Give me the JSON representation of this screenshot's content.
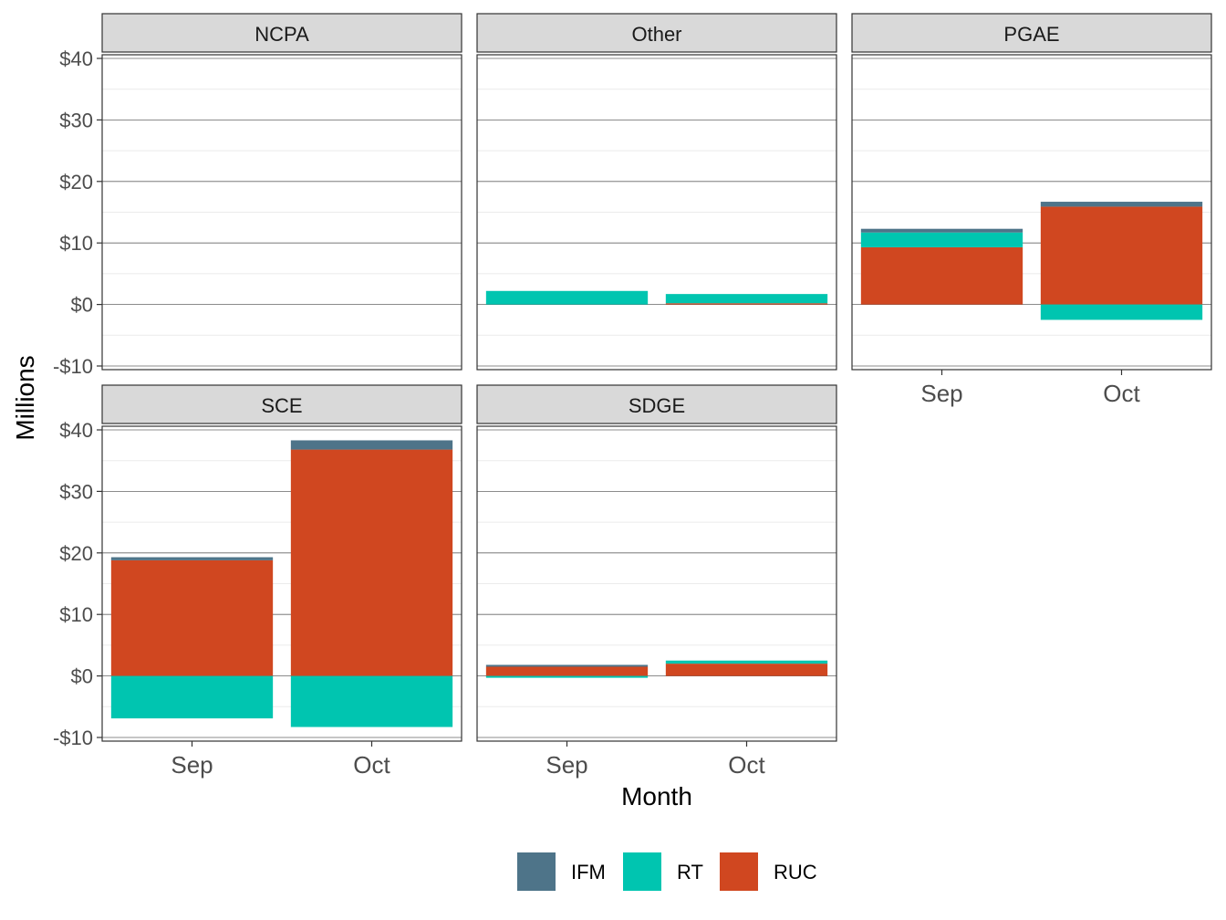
{
  "chart_data": {
    "type": "bar",
    "stacked": true,
    "title": "",
    "xlabel": "Month",
    "ylabel": "Millions",
    "categories": [
      "Sep",
      "Oct"
    ],
    "ylim": [
      -10,
      40
    ],
    "yticks": [
      -10,
      0,
      10,
      20,
      30,
      40
    ],
    "ytick_labels": [
      "-$10",
      "$0",
      "$10",
      "$20",
      "$30",
      "$40"
    ],
    "legend": {
      "position": "bottom",
      "entries": [
        {
          "name": "IFM",
          "color": "#4e7489"
        },
        {
          "name": "RT",
          "color": "#00c5b0"
        },
        {
          "name": "RUC",
          "color": "#d04720"
        }
      ]
    },
    "panels": [
      {
        "name": "NCPA",
        "series": [
          {
            "name": "IFM",
            "values": [
              0,
              0
            ]
          },
          {
            "name": "RT",
            "values": [
              0,
              0
            ]
          },
          {
            "name": "RUC",
            "values": [
              0,
              0
            ]
          }
        ]
      },
      {
        "name": "Other",
        "series": [
          {
            "name": "IFM",
            "values": [
              0,
              0
            ]
          },
          {
            "name": "RT",
            "values": [
              2.2,
              1.5
            ]
          },
          {
            "name": "RUC",
            "values": [
              0,
              0.2
            ]
          }
        ]
      },
      {
        "name": "PGAE",
        "series": [
          {
            "name": "IFM",
            "values": [
              0.6,
              0.8
            ]
          },
          {
            "name": "RT",
            "values": [
              2.4,
              -2.5
            ]
          },
          {
            "name": "RUC",
            "values": [
              9.3,
              15.9
            ]
          }
        ]
      },
      {
        "name": "SCE",
        "series": [
          {
            "name": "IFM",
            "values": [
              0.5,
              1.5
            ]
          },
          {
            "name": "RT",
            "values": [
              -6.9,
              -8.3
            ]
          },
          {
            "name": "RUC",
            "values": [
              18.8,
              36.8
            ]
          }
        ]
      },
      {
        "name": "SDGE",
        "series": [
          {
            "name": "IFM",
            "values": [
              0.3,
              0
            ]
          },
          {
            "name": "RT",
            "values": [
              -0.3,
              0.5
            ]
          },
          {
            "name": "RUC",
            "values": [
              1.5,
              2.0
            ]
          }
        ]
      }
    ]
  }
}
